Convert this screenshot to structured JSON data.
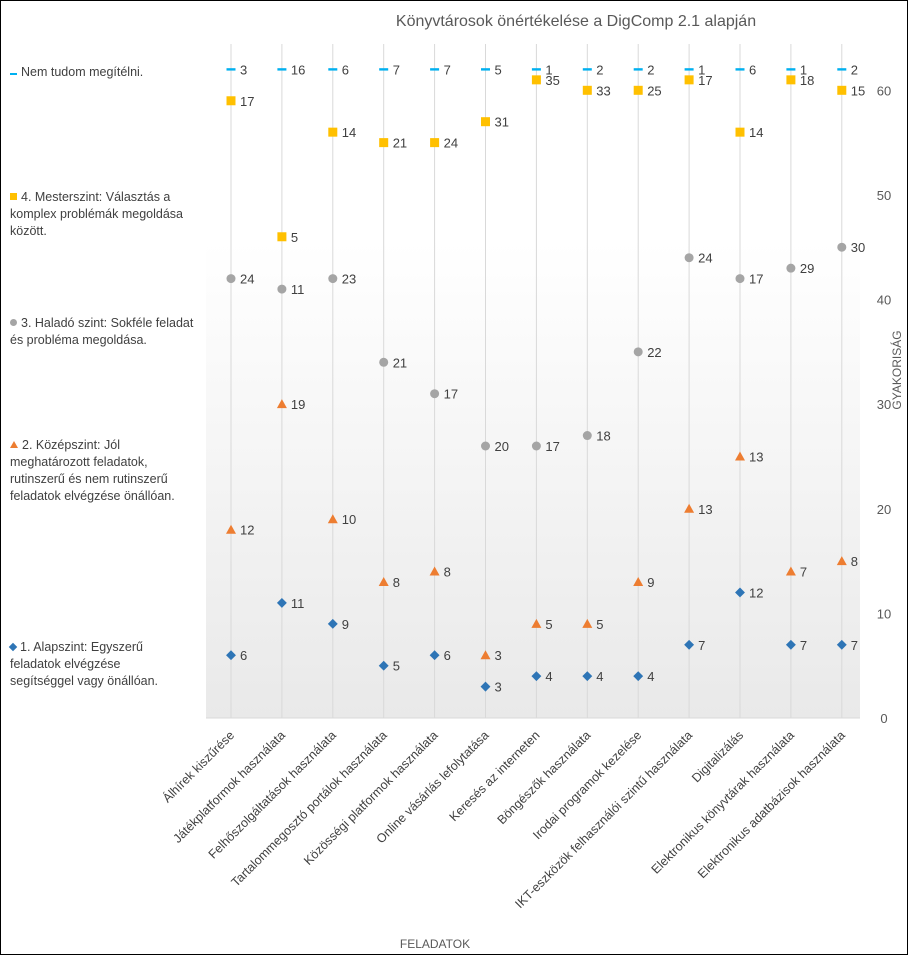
{
  "chart_data": {
    "type": "scatter",
    "title": "Könyvtárosok önértékelése a DigComp 2.1 alapján",
    "xlabel": "FELADATOK",
    "ylabel": "GYAKORISÁG",
    "ylim": [
      0,
      65
    ],
    "yticks": [
      0,
      10,
      20,
      30,
      40,
      50,
      60
    ],
    "grid": "vertical",
    "legend_position": "left",
    "categories": [
      "Álhírek kiszűrése",
      "Játékplatformok használata",
      "Felhőszolgáltatások használata",
      "Tartalommegosztó portálok használata",
      "Közösségi platformok használata",
      "Online vásárlás lefolytatása",
      "Keresés az interneten",
      "Böngészők használata",
      "Irodai programok kezelése",
      "IKT-eszközök felhasználói szintű használata",
      "Digitalizálás",
      "Elektronikus könyvtárak használata",
      "Elektronikus adatbázisok használata"
    ],
    "series": [
      {
        "name": "1. Alapszint: Egyszerű feladatok elvégzése segítséggel vagy önállóan.",
        "marker": "diamond",
        "color": "#2E75B6",
        "positions": [
          6,
          11,
          9,
          5,
          6,
          3,
          4,
          4,
          4,
          7,
          12,
          7,
          7
        ],
        "labels": [
          6,
          11,
          9,
          5,
          6,
          3,
          4,
          4,
          4,
          7,
          12,
          7,
          7
        ]
      },
      {
        "name": "2. Középszint: Jól meghatározott feladatok, rutinszerű és nem rutinszerű feladatok elvégzése önállóan.",
        "marker": "triangle",
        "color": "#ED7D31",
        "positions": [
          18,
          30,
          19,
          13,
          14,
          6,
          9,
          9,
          13,
          20,
          25,
          14,
          15
        ],
        "labels": [
          12,
          19,
          10,
          8,
          8,
          3,
          5,
          5,
          9,
          13,
          13,
          7,
          8
        ]
      },
      {
        "name": "3. Haladó szint: Sokféle feladat és probléma megoldása.",
        "marker": "circle",
        "color": "#A5A5A5",
        "positions": [
          42,
          41,
          42,
          34,
          31,
          26,
          26,
          27,
          35,
          44,
          42,
          43,
          45
        ],
        "labels": [
          24,
          11,
          23,
          21,
          17,
          20,
          17,
          18,
          22,
          24,
          17,
          29,
          30
        ]
      },
      {
        "name": "4. Mesterszint: Választás a komplex problémák megoldása között.",
        "marker": "square",
        "color": "#FFC000",
        "positions": [
          59,
          46,
          56,
          55,
          55,
          57,
          61,
          60,
          60,
          61,
          56,
          61,
          60
        ],
        "labels": [
          17,
          5,
          14,
          21,
          24,
          31,
          35,
          33,
          25,
          17,
          14,
          18,
          15
        ]
      },
      {
        "name": "Nem tudom megítélni.",
        "marker": "dash",
        "color": "#00B0F0",
        "positions": [
          62,
          62,
          62,
          62,
          62,
          62,
          62,
          62,
          62,
          62,
          62,
          62,
          62
        ],
        "labels": [
          3,
          16,
          6,
          7,
          7,
          5,
          1,
          2,
          2,
          1,
          6,
          1,
          2
        ]
      }
    ]
  }
}
